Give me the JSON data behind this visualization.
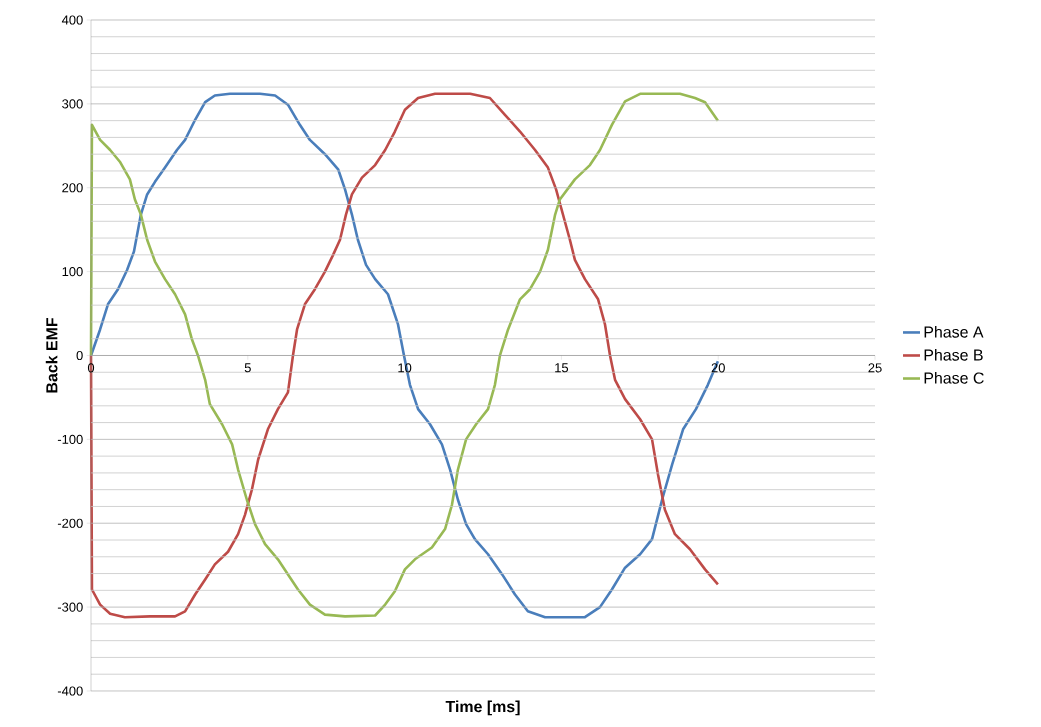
{
  "chart_data": {
    "type": "line",
    "xlabel": "Time [ms]",
    "ylabel": "Back EMF",
    "xlim": [
      0,
      25
    ],
    "xticks": [
      0,
      5,
      10,
      15,
      20,
      25
    ],
    "ylim": [
      -400,
      400
    ],
    "yticks": [
      -400,
      -300,
      -200,
      -100,
      0,
      100,
      200,
      300,
      400
    ],
    "grid": "y",
    "legend": "right",
    "marker": "none",
    "line_style": "solid",
    "series": [
      {
        "name": "Phase A",
        "color": "#4a7ebb",
        "x": [
          0,
          0.29,
          0.54,
          0.86,
          1.15,
          1.37,
          1.59,
          1.79,
          2.04,
          2.36,
          2.74,
          3.0,
          3.32,
          3.64,
          3.95,
          4.43,
          5.39,
          5.87,
          6.28,
          6.66,
          6.98,
          7.46,
          7.88,
          8.1,
          8.32,
          8.51,
          8.77,
          9.06,
          9.47,
          9.79,
          9.98,
          10.17,
          10.43,
          10.81,
          11.19,
          11.45,
          11.7,
          11.96,
          12.24,
          12.66,
          13.11,
          13.52,
          13.93,
          14.48,
          15.75,
          16.23,
          16.61,
          17.03,
          17.51,
          17.89,
          18.21,
          18.53,
          18.88,
          19.29,
          19.67,
          19.99
        ],
        "values": [
          0,
          31,
          61,
          79,
          102,
          124,
          168,
          192,
          207,
          224,
          245,
          257,
          281,
          302,
          310,
          312,
          312,
          310,
          299,
          275,
          257,
          240,
          222,
          198,
          168,
          138,
          108,
          91,
          73,
          37,
          0,
          -35,
          -64,
          -82,
          -106,
          -136,
          -172,
          -201,
          -219,
          -237,
          -261,
          -285,
          -305,
          -312,
          -312,
          -300,
          -279,
          -253,
          -237,
          -219,
          -172,
          -130,
          -88,
          -64,
          -35,
          -7
        ]
      },
      {
        "name": "Phase B",
        "color": "#be4b48",
        "x": [
          0,
          0.03,
          0.29,
          0.61,
          1.08,
          1.88,
          2.68,
          3.0,
          3.32,
          3.64,
          3.95,
          4.37,
          4.69,
          4.91,
          5.13,
          5.33,
          5.64,
          5.96,
          6.28,
          6.44,
          6.57,
          6.82,
          7.14,
          7.46,
          7.72,
          7.94,
          8.13,
          8.32,
          8.64,
          9.06,
          9.38,
          9.69,
          10.01,
          10.43,
          10.97,
          12.09,
          12.72,
          13.2,
          13.68,
          14.16,
          14.57,
          14.83,
          15.05,
          15.27,
          15.43,
          15.75,
          16.17,
          16.39,
          16.55,
          16.71,
          17.03,
          17.51,
          17.89,
          18.08,
          18.3,
          18.62,
          19.1,
          19.58,
          19.99
        ],
        "values": [
          0,
          -279,
          -297,
          -308,
          -312,
          -311,
          -311,
          -305,
          -285,
          -267,
          -249,
          -234,
          -213,
          -190,
          -160,
          -124,
          -88,
          -64,
          -44,
          0,
          31,
          61,
          79,
          100,
          120,
          138,
          168,
          192,
          212,
          227,
          245,
          267,
          293,
          307,
          312,
          312,
          307,
          287,
          267,
          245,
          224,
          198,
          168,
          138,
          114,
          91,
          67,
          37,
          0,
          -29,
          -52,
          -76,
          -100,
          -142,
          -184,
          -213,
          -231,
          -255,
          -273
        ]
      },
      {
        "name": "Phase C",
        "color": "#98b954",
        "x": [
          0,
          0.03,
          0.29,
          0.61,
          0.92,
          1.24,
          1.4,
          1.59,
          1.79,
          2.04,
          2.36,
          2.68,
          3.0,
          3.22,
          3.41,
          3.64,
          3.79,
          4.18,
          4.5,
          4.69,
          4.97,
          5.23,
          5.55,
          5.96,
          6.35,
          6.6,
          6.98,
          7.46,
          8.1,
          9.06,
          9.38,
          9.69,
          10.01,
          10.33,
          10.87,
          11.29,
          11.51,
          11.7,
          11.96,
          12.28,
          12.66,
          12.88,
          13.04,
          13.3,
          13.68,
          14.0,
          14.32,
          14.57,
          14.8,
          14.95,
          15.43,
          15.91,
          16.23,
          16.61,
          17.03,
          17.51,
          18.78,
          19.26,
          19.58,
          19.99
        ],
        "values": [
          0,
          275,
          257,
          245,
          231,
          210,
          186,
          168,
          138,
          112,
          91,
          73,
          49,
          19,
          0,
          -29,
          -58,
          -82,
          -106,
          -136,
          -172,
          -201,
          -225,
          -243,
          -265,
          -279,
          -297,
          -309,
          -311,
          -310,
          -297,
          -281,
          -255,
          -243,
          -229,
          -207,
          -178,
          -136,
          -100,
          -82,
          -64,
          -35,
          0,
          31,
          67,
          79,
          100,
          126,
          168,
          186,
          210,
          227,
          245,
          275,
          303,
          312,
          312,
          307,
          302,
          280
        ]
      }
    ]
  }
}
